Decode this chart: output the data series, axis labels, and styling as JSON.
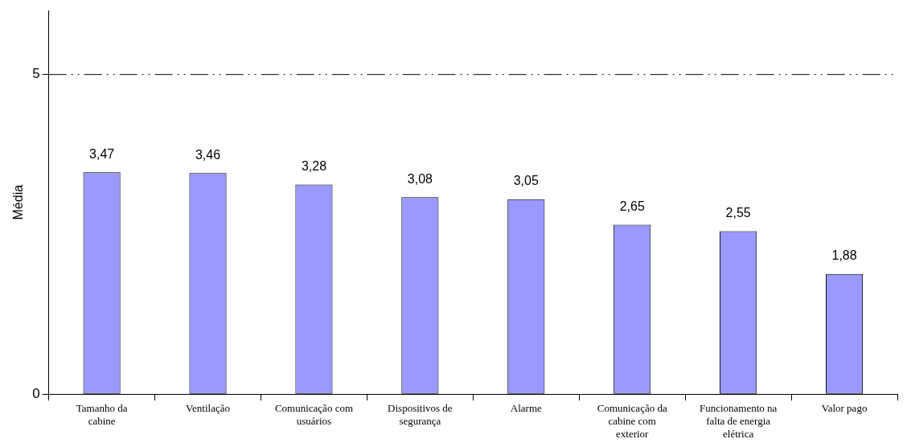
{
  "chart_data": {
    "type": "bar",
    "ylabel": "Média",
    "categories": [
      "Tamanho da cabine",
      "Ventilação",
      "Comunicação com usuários",
      "Dispositivos de segurança",
      "Alarme",
      "Comunicação da cabine com exterior",
      "Funcionamento na falta de energia elétrica",
      "Valor pago"
    ],
    "values": [
      3.47,
      3.46,
      3.28,
      3.08,
      3.05,
      2.65,
      2.55,
      1.88
    ],
    "value_labels": [
      "3,47",
      "3,46",
      "3,28",
      "3,08",
      "3,05",
      "2,65",
      "2,55",
      "1,88"
    ],
    "color": "#9999ff",
    "ylim": [
      0,
      6
    ],
    "yticks": [
      0,
      5
    ],
    "ref_lines": [
      {
        "axis": "y",
        "value": 5,
        "color": "#000000",
        "line_style": "dashed"
      }
    ],
    "grid": false,
    "legend": false
  }
}
